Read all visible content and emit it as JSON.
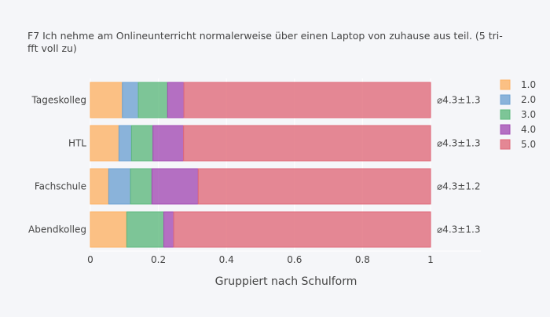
{
  "chart_data": {
    "type": "bar",
    "orientation": "horizontal",
    "stacked": true,
    "title_lines": [
      "F7 Ich nehme am Onlineunterricht normalerweise über einen Laptop von zuhause aus teil. (5 tri-",
      "fft voll zu)"
    ],
    "xlabel": "Gruppiert nach Schulform",
    "ylabel": "",
    "xlim": [
      0,
      1.15
    ],
    "xticks": [
      "0",
      "0.2",
      "0.4",
      "0.6",
      "0.8",
      "1"
    ],
    "grid": true,
    "legend_position": "right",
    "categories": [
      "Tageskolleg",
      "HTL",
      "Fachschule",
      "Abendkolleg"
    ],
    "annotations": [
      "⌀4.3±1.3",
      "⌀4.3±1.3",
      "⌀4.3±1.2",
      "⌀4.3±1.3"
    ],
    "series": [
      {
        "name": "1.0",
        "color": "#fdb366",
        "values": [
          0.094,
          0.084,
          0.054,
          0.107
        ]
      },
      {
        "name": "2.0",
        "color": "#6fa3d2",
        "values": [
          0.047,
          0.037,
          0.064,
          0.0
        ]
      },
      {
        "name": "3.0",
        "color": "#5fb97e",
        "values": [
          0.086,
          0.063,
          0.063,
          0.109
        ]
      },
      {
        "name": "4.0",
        "color": "#a44db4",
        "values": [
          0.048,
          0.09,
          0.136,
          0.029
        ]
      },
      {
        "name": "5.0",
        "color": "#e06b7a",
        "values": [
          0.725,
          0.726,
          0.683,
          0.755
        ]
      }
    ]
  }
}
